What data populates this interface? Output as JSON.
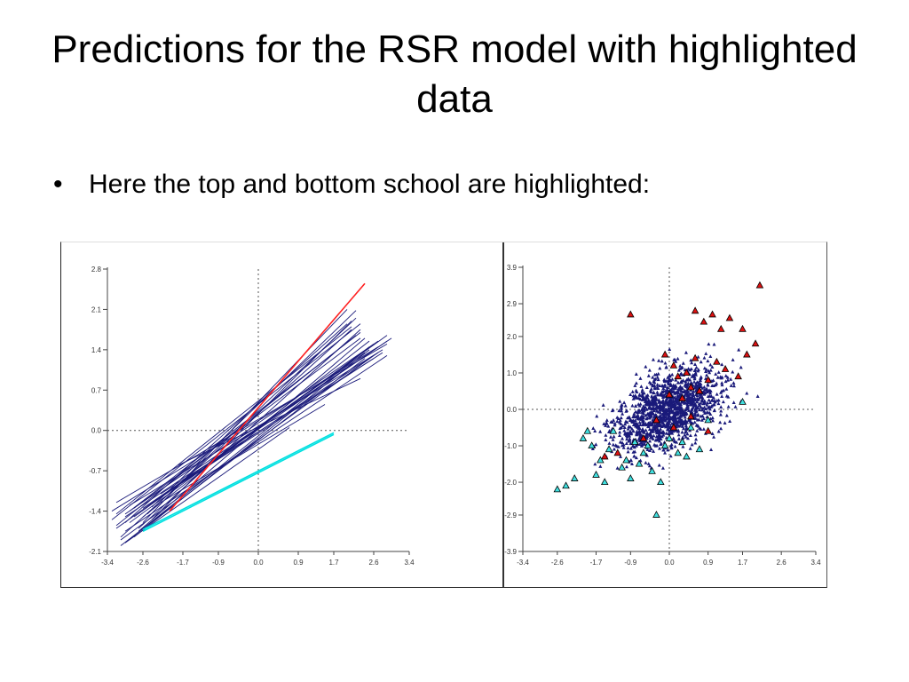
{
  "slide": {
    "title": "Predictions for the RSR model with highlighted data",
    "bullet": "Here the top and bottom school are highlighted:"
  },
  "colors": {
    "school_lines": "#1a1a7a",
    "top_school": "#ff2020",
    "bottom_school": "#00e0e0",
    "points": "#1a1a7a",
    "top_points": "#dd1111",
    "bottom_points": "#40e0e0"
  },
  "chart_data": [
    {
      "type": "line",
      "xticks": [
        "-3.4",
        "-2.6",
        "-1.7",
        "-0.9",
        "0.0",
        "0.9",
        "1.7",
        "2.6",
        "3.4"
      ],
      "yticks": [
        "-2.1",
        "-1.4",
        "-0.7",
        "0.0",
        "0.7",
        "1.4",
        "2.1",
        "2.8"
      ],
      "xlim": [
        -3.4,
        3.4
      ],
      "ylim": [
        -2.1,
        2.8
      ],
      "grid": "dotted zero lines",
      "series": [
        {
          "role": "school",
          "x": [
            -2.4,
            2.2
          ],
          "y": [
            -1.33,
            2.08
          ]
        },
        {
          "role": "school",
          "x": [
            -3.0,
            2.7
          ],
          "y": [
            -1.45,
            1.55
          ]
        },
        {
          "role": "school",
          "x": [
            -2.6,
            2.0
          ],
          "y": [
            -1.6,
            2.1
          ]
        },
        {
          "role": "school",
          "x": [
            -3.2,
            2.4
          ],
          "y": [
            -1.7,
            1.35
          ]
        },
        {
          "role": "school",
          "x": [
            -2.8,
            2.9
          ],
          "y": [
            -1.5,
            1.65
          ]
        },
        {
          "role": "school",
          "x": [
            -3.1,
            2.1
          ],
          "y": [
            -1.85,
            1.75
          ]
        },
        {
          "role": "school",
          "x": [
            -2.2,
            2.6
          ],
          "y": [
            -1.1,
            1.25
          ]
        },
        {
          "role": "school",
          "x": [
            -3.3,
            2.3
          ],
          "y": [
            -1.55,
            1.85
          ]
        },
        {
          "role": "school",
          "x": [
            -2.9,
            2.8
          ],
          "y": [
            -1.3,
            1.4
          ]
        },
        {
          "role": "school",
          "x": [
            -3.0,
            2.5
          ],
          "y": [
            -1.95,
            1.45
          ]
        },
        {
          "role": "school",
          "x": [
            -2.5,
            2.2
          ],
          "y": [
            -1.45,
            1.95
          ]
        },
        {
          "role": "school",
          "x": [
            -3.2,
            2.9
          ],
          "y": [
            -1.25,
            1.5
          ]
        },
        {
          "role": "school",
          "x": [
            -2.7,
            2.4
          ],
          "y": [
            -1.75,
            1.6
          ]
        },
        {
          "role": "school",
          "x": [
            -3.0,
            2.0
          ],
          "y": [
            -1.6,
            1.85
          ]
        },
        {
          "role": "school",
          "x": [
            -2.3,
            2.7
          ],
          "y": [
            -1.2,
            1.35
          ]
        },
        {
          "role": "school",
          "x": [
            -3.1,
            2.6
          ],
          "y": [
            -1.9,
            1.3
          ]
        },
        {
          "role": "school",
          "x": [
            -2.9,
            2.3
          ],
          "y": [
            -1.4,
            1.7
          ]
        },
        {
          "role": "school",
          "x": [
            -2.6,
            2.9
          ],
          "y": [
            -1.35,
            1.55
          ]
        },
        {
          "role": "school",
          "x": [
            -3.2,
            2.2
          ],
          "y": [
            -1.65,
            1.65
          ]
        },
        {
          "role": "school",
          "x": [
            -2.8,
            2.5
          ],
          "y": [
            -1.85,
            1.4
          ]
        },
        {
          "role": "school",
          "x": [
            -3.0,
            3.0
          ],
          "y": [
            -1.5,
            1.6
          ]
        },
        {
          "role": "school",
          "x": [
            -2.4,
            2.1
          ],
          "y": [
            -1.55,
            1.9
          ]
        },
        {
          "role": "school",
          "x": [
            -3.3,
            2.7
          ],
          "y": [
            -1.4,
            1.45
          ]
        },
        {
          "role": "school",
          "x": [
            -2.7,
            2.3
          ],
          "y": [
            -1.7,
            1.75
          ]
        },
        {
          "role": "school",
          "x": [
            -2.5,
            2.8
          ],
          "y": [
            -1.3,
            1.35
          ]
        },
        {
          "role": "school",
          "x": [
            -3.1,
            2.4
          ],
          "y": [
            -2.0,
            1.25
          ]
        },
        {
          "role": "school",
          "x": [
            -2.9,
            2.6
          ],
          "y": [
            -1.6,
            1.5
          ]
        },
        {
          "role": "school",
          "x": [
            -3.2,
            2.1
          ],
          "y": [
            -1.45,
            1.8
          ]
        },
        {
          "role": "school",
          "x": [
            -2.6,
            2.5
          ],
          "y": [
            -1.5,
            1.55
          ]
        },
        {
          "role": "school",
          "x": [
            -3.0,
            2.9
          ],
          "y": [
            -1.75,
            1.3
          ]
        },
        {
          "role": "school",
          "x": [
            -2.8,
            2.3
          ],
          "y": [
            -1.35,
            1.6
          ]
        },
        {
          "role": "school",
          "x": [
            -1.8,
            2.3
          ],
          "y": [
            -0.6,
            0.9
          ]
        },
        {
          "role": "school",
          "x": [
            -2.2,
            1.5
          ],
          "y": [
            -1.25,
            0.45
          ]
        },
        {
          "role": "school",
          "x": [
            -3.0,
            0.7
          ],
          "y": [
            -1.95,
            0.05
          ]
        },
        {
          "role": "top-school",
          "x": [
            -2.0,
            2.4
          ],
          "y": [
            -1.4,
            2.55
          ]
        },
        {
          "role": "bottom-school",
          "x": [
            -2.6,
            1.7
          ],
          "y": [
            -1.75,
            -0.07
          ]
        },
        {
          "role": "bottom-school",
          "x": [
            -2.6,
            1.7
          ],
          "y": [
            -1.72,
            -0.04
          ]
        }
      ]
    },
    {
      "type": "scatter",
      "xticks": [
        "-3.4",
        "-2.6",
        "-1.7",
        "-0.9",
        "0.0",
        "0.9",
        "1.7",
        "2.6",
        "3.4"
      ],
      "yticks": [
        "-3.9",
        "-2.9",
        "-2.0",
        "-1.0",
        "0.0",
        "1.0",
        "2.0",
        "2.9",
        "3.9"
      ],
      "xlim": [
        -3.4,
        3.4
      ],
      "ylim": [
        -3.9,
        3.9
      ],
      "grid": "dotted zero lines",
      "marker": "triangle",
      "series": [
        {
          "role": "top-school",
          "x": [
            -0.9,
            -0.1,
            0.1,
            0.4,
            0.6,
            0.8,
            1.0,
            1.2,
            1.4,
            1.8,
            2.0,
            0.9,
            1.1,
            0.7,
            0.3,
            0.5,
            1.6,
            1.3,
            0.2,
            -0.3,
            -0.6,
            -1.2,
            -1.5,
            0.0,
            0.5,
            0.9,
            1.7,
            2.1,
            0.6,
            0.1
          ],
          "y": [
            2.6,
            1.5,
            1.2,
            1.0,
            1.4,
            2.4,
            2.6,
            2.2,
            2.5,
            1.5,
            1.8,
            0.8,
            1.3,
            0.5,
            0.3,
            -0.2,
            0.9,
            1.1,
            0.9,
            -0.3,
            -0.8,
            -1.2,
            -1.3,
            0.4,
            0.6,
            -0.6,
            2.2,
            3.4,
            2.7,
            -0.5
          ]
        },
        {
          "role": "bottom-school",
          "x": [
            -2.6,
            -2.4,
            -2.2,
            -2.0,
            -1.8,
            -1.6,
            -1.5,
            -1.3,
            -1.1,
            -0.9,
            -0.8,
            -0.6,
            -0.4,
            -0.2,
            0.0,
            0.2,
            0.5,
            0.7,
            0.9,
            -1.0,
            -1.9,
            -1.4,
            0.3,
            -0.7,
            -0.3,
            -0.1,
            0.4,
            1.7,
            -1.7,
            -0.5
          ],
          "y": [
            -2.2,
            -2.1,
            -1.9,
            -0.8,
            -1.0,
            -1.4,
            -2.0,
            -0.6,
            -1.6,
            -1.9,
            -0.9,
            -1.2,
            -1.7,
            -2.0,
            -0.8,
            -1.2,
            -0.5,
            -1.1,
            -0.3,
            -1.4,
            -0.6,
            -1.1,
            -0.9,
            -1.5,
            -2.9,
            -1.0,
            -1.3,
            0.2,
            -1.8,
            -1.0
          ]
        }
      ]
    }
  ]
}
